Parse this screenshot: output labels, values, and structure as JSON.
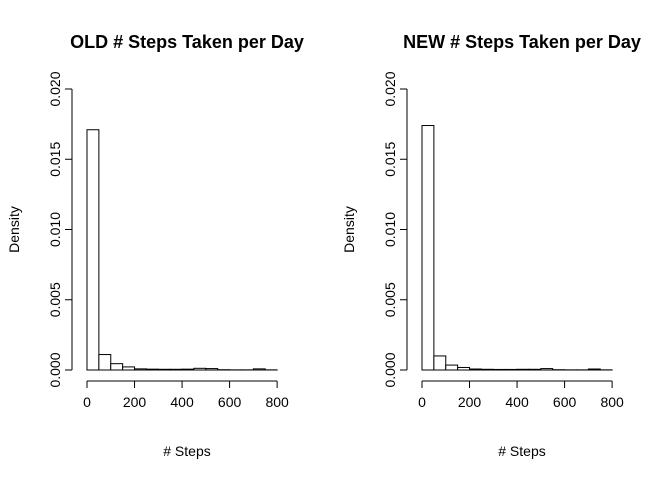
{
  "chart_data": [
    {
      "type": "bar",
      "title": "OLD # Steps Taken per Day",
      "xlabel": "# Steps",
      "ylabel": "Density",
      "xlim": [
        0,
        850
      ],
      "ylim": [
        0,
        0.02
      ],
      "bin_width": 50,
      "x_ticks": [
        0,
        200,
        400,
        600,
        800
      ],
      "x_tick_labels": [
        "0",
        "200",
        "400",
        "600",
        "800"
      ],
      "y_ticks": [
        0,
        0.005,
        0.01,
        0.015,
        0.02
      ],
      "y_tick_labels": [
        "0.000",
        "0.005",
        "0.010",
        "0.015",
        "0.020"
      ],
      "bins": [
        {
          "x0": 0,
          "x1": 50,
          "density": 0.0171
        },
        {
          "x0": 50,
          "x1": 100,
          "density": 0.0011
        },
        {
          "x0": 100,
          "x1": 150,
          "density": 0.00045
        },
        {
          "x0": 150,
          "x1": 200,
          "density": 0.00022
        },
        {
          "x0": 200,
          "x1": 250,
          "density": 8e-05
        },
        {
          "x0": 250,
          "x1": 300,
          "density": 6e-05
        },
        {
          "x0": 300,
          "x1": 350,
          "density": 5e-05
        },
        {
          "x0": 350,
          "x1": 400,
          "density": 5e-05
        },
        {
          "x0": 400,
          "x1": 450,
          "density": 6e-05
        },
        {
          "x0": 450,
          "x1": 500,
          "density": 0.00012
        },
        {
          "x0": 500,
          "x1": 550,
          "density": 0.0001
        },
        {
          "x0": 550,
          "x1": 600,
          "density": 2e-05
        },
        {
          "x0": 600,
          "x1": 650,
          "density": 1e-05
        },
        {
          "x0": 650,
          "x1": 700,
          "density": 1e-05
        },
        {
          "x0": 700,
          "x1": 750,
          "density": 8e-05
        },
        {
          "x0": 750,
          "x1": 800,
          "density": 1e-05
        }
      ]
    },
    {
      "type": "bar",
      "title": "NEW # Steps Taken per Day",
      "xlabel": "# Steps",
      "ylabel": "Density",
      "xlim": [
        0,
        850
      ],
      "ylim": [
        0,
        0.02
      ],
      "bin_width": 50,
      "x_ticks": [
        0,
        200,
        400,
        600,
        800
      ],
      "x_tick_labels": [
        "0",
        "200",
        "400",
        "600",
        "800"
      ],
      "y_ticks": [
        0,
        0.005,
        0.01,
        0.015,
        0.02
      ],
      "y_tick_labels": [
        "0.000",
        "0.005",
        "0.010",
        "0.015",
        "0.020"
      ],
      "bins": [
        {
          "x0": 0,
          "x1": 50,
          "density": 0.0174
        },
        {
          "x0": 50,
          "x1": 100,
          "density": 0.001
        },
        {
          "x0": 100,
          "x1": 150,
          "density": 0.00035
        },
        {
          "x0": 150,
          "x1": 200,
          "density": 0.00018
        },
        {
          "x0": 200,
          "x1": 250,
          "density": 7e-05
        },
        {
          "x0": 250,
          "x1": 300,
          "density": 5e-05
        },
        {
          "x0": 300,
          "x1": 350,
          "density": 4e-05
        },
        {
          "x0": 350,
          "x1": 400,
          "density": 4e-05
        },
        {
          "x0": 400,
          "x1": 450,
          "density": 5e-05
        },
        {
          "x0": 450,
          "x1": 500,
          "density": 5e-05
        },
        {
          "x0": 500,
          "x1": 550,
          "density": 0.0001
        },
        {
          "x0": 550,
          "x1": 600,
          "density": 2e-05
        },
        {
          "x0": 600,
          "x1": 650,
          "density": 1e-05
        },
        {
          "x0": 650,
          "x1": 700,
          "density": 1e-05
        },
        {
          "x0": 700,
          "x1": 750,
          "density": 7e-05
        },
        {
          "x0": 750,
          "x1": 800,
          "density": 1e-05
        }
      ]
    }
  ]
}
